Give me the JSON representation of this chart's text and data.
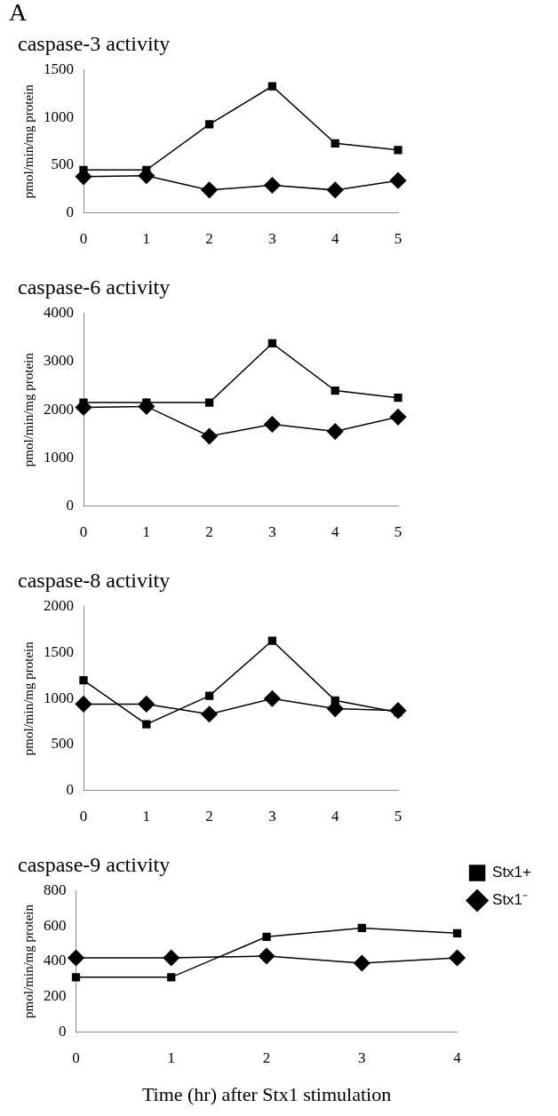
{
  "chart_data": [
    {
      "type": "line",
      "title": "caspase-3 activity",
      "ylabel": "pmol/min/mg protein",
      "annotations": [
        "A"
      ],
      "categories": [
        "0",
        "1",
        "2",
        "3",
        "4",
        "5"
      ],
      "series": [
        {
          "color": "#000000",
          "marker": "square",
          "values": [
            450,
            450,
            930,
            1330,
            730,
            660
          ]
        },
        {
          "color": "#000000",
          "marker": "diamond",
          "values": [
            380,
            390,
            240,
            290,
            240,
            340
          ]
        }
      ],
      "ylim": [
        0,
        1500
      ],
      "yticks": [
        0,
        500,
        1000,
        1500
      ],
      "grid": false,
      "legend": false
    },
    {
      "type": "line",
      "title": "caspase-6 activity",
      "ylabel": "pmol/min/mg protein",
      "categories": [
        "0",
        "1",
        "2",
        "3",
        "4",
        "5"
      ],
      "series": [
        {
          "color": "#000000",
          "marker": "square",
          "values": [
            2150,
            2150,
            2150,
            3380,
            2400,
            2250
          ]
        },
        {
          "color": "#000000",
          "marker": "diamond",
          "values": [
            2050,
            2070,
            1450,
            1700,
            1550,
            1850
          ]
        }
      ],
      "ylim": [
        0,
        4000
      ],
      "yticks": [
        0,
        1000,
        2000,
        3000,
        4000
      ],
      "grid": false,
      "legend": false
    },
    {
      "type": "line",
      "title": "caspase-8 activity",
      "ylabel": "pmol/min/mg protein",
      "categories": [
        "0",
        "1",
        "2",
        "3",
        "4",
        "5"
      ],
      "series": [
        {
          "color": "#000000",
          "marker": "square",
          "values": [
            1200,
            720,
            1030,
            1630,
            980,
            850
          ]
        },
        {
          "color": "#000000",
          "marker": "diamond",
          "values": [
            940,
            940,
            830,
            1000,
            890,
            870
          ]
        }
      ],
      "ylim": [
        0,
        2000
      ],
      "yticks": [
        0,
        500,
        1000,
        1500,
        2000
      ],
      "grid": false,
      "legend": false
    },
    {
      "type": "line",
      "title": "caspase-9 activity",
      "ylabel": "pmol/min/mg protein",
      "xlabel": "Time (hr) after Stx1 stimulation",
      "categories": [
        "0",
        "1",
        "2",
        "3",
        "4"
      ],
      "series": [
        {
          "name": "Stx1+",
          "color": "#000000",
          "marker": "square",
          "values": [
            310,
            310,
            540,
            590,
            560
          ]
        },
        {
          "name": "Stx1⁻",
          "color": "#000000",
          "marker": "diamond",
          "values": [
            420,
            420,
            430,
            390,
            420
          ]
        }
      ],
      "ylim": [
        0,
        800
      ],
      "yticks": [
        0,
        200,
        400,
        600,
        800
      ],
      "grid": false,
      "legend": "top right"
    }
  ]
}
